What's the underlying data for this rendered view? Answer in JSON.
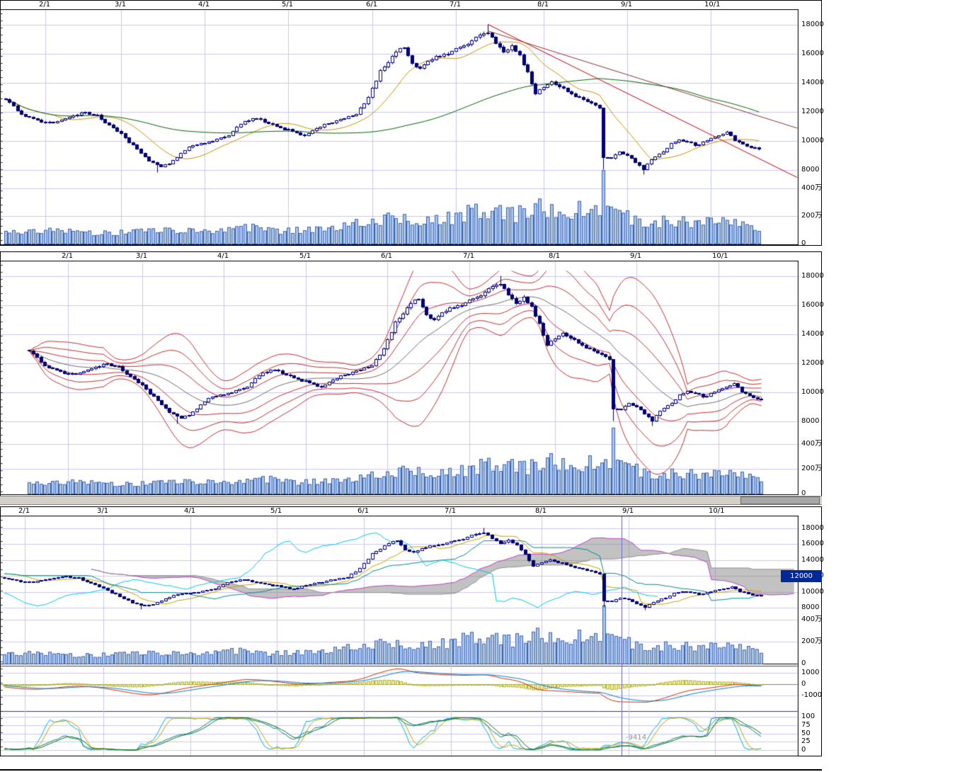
{
  "colors": {
    "background": "#ffffff",
    "grid": "#c8c8f0",
    "panel_border": "#000000",
    "candle_down": "#000080",
    "candle_up_fill": "#ffffff",
    "candle_outline": "#000066",
    "volume_fill": "#a8c8f0",
    "volume_outline": "#4060a8",
    "sma_short": "#d09000",
    "sma_long": "#006600",
    "trendline_1": "#c00000",
    "trendline_2": "#903030",
    "bollinger_band": "#c03030",
    "bollinger_center": "#707070",
    "ichimoku_tenkan": "#c8a000",
    "ichimoku_kijun": "#008b8b",
    "ichimoku_chikou": "#00c8e8",
    "ichimoku_span_a": "#c040c0",
    "ichimoku_span_b": "#909090",
    "ichimoku_cloud": "rgba(144,144,144,0.55)",
    "macd_line": "#d03000",
    "macd_signal": "#0080c8",
    "macd_hist_fill": "#f0f090",
    "macd_hist_outline": "#b0b040",
    "stoch_k": "#00b0d8",
    "stoch_d": "#c8a000",
    "stoch_slow": "#107010",
    "stoch_extra": "#008080",
    "cursor_line": "#7070c8",
    "price_marker_bg": "#002898",
    "price_marker_text": "#ffffff",
    "scrollbar_track": "#d4d0c8",
    "scrollbar_thumb": "#a8a8a8",
    "axis_text": "#000000",
    "cursor_value_text": "#909090"
  },
  "chart_data": {
    "type": "candlestick",
    "description_of_panels": [
      {
        "id": "daily-candles-moving-averages",
        "overlays": [
          "candlesticks",
          "volume bars",
          "short moving average (orange)",
          "long moving average (green)",
          "descending trendline (red)",
          "descending trendline (dark red)"
        ]
      },
      {
        "id": "bollinger-bands",
        "overlays": [
          "candlesticks",
          "volume bars",
          "center moving average (gray)",
          "bollinger bands ±1σ ±2σ ±3σ (red)"
        ]
      },
      {
        "id": "ichimoku-macd-stochastics",
        "overlays": [
          "candlesticks",
          "volume bars",
          "ichimoku cloud (gray fill, magenta span A, gray span B, gold tenkan, teal kijun, cyan chikou)",
          "MACD red line, blue signal, yellow histogram",
          "stochastics lines (cyan, gold, teal, green)"
        ]
      }
    ],
    "x_tick_labels": [
      "2/1",
      "3/1",
      "4/1",
      "5/1",
      "6/1",
      "7/1",
      "8/1",
      "9/1",
      "10/1"
    ],
    "month_day_index": {
      "2/1": 10,
      "3/1": 29,
      "4/1": 50,
      "5/1": 71,
      "6/1": 92,
      "7/1": 113,
      "8/1": 135,
      "9/1": 156,
      "10/1": 177
    },
    "price_axis_ticks": [
      18000,
      16000,
      14000,
      12000,
      10000,
      8000
    ],
    "volume_axis_ticks": [
      {
        "label": "400万",
        "value": 400
      },
      {
        "label": "200万",
        "value": 200
      },
      {
        "label": "0",
        "value": 0
      }
    ],
    "macd_axis_ticks": [
      {
        "label": "1000",
        "value": 1000
      },
      {
        "label": "0",
        "value": 0
      },
      {
        "label": "-1000",
        "value": -1000
      }
    ],
    "oscillator_axis_ticks": [
      {
        "label": "100",
        "value": 100
      },
      {
        "label": "75",
        "value": 75
      },
      {
        "label": "50",
        "value": 50
      },
      {
        "label": "25",
        "value": 25
      },
      {
        "label": "0",
        "value": 0
      }
    ],
    "series": {
      "days": 190,
      "feb1_day_index": 10,
      "close_anchors": [
        [
          0,
          12900
        ],
        [
          2,
          12400
        ],
        [
          4,
          11900
        ],
        [
          6,
          11600
        ],
        [
          9,
          11400
        ],
        [
          12,
          11300
        ],
        [
          16,
          11700
        ],
        [
          20,
          12000
        ],
        [
          23,
          11750
        ],
        [
          26,
          11100
        ],
        [
          29,
          10500
        ],
        [
          31,
          9900
        ],
        [
          33,
          9500
        ],
        [
          36,
          8700
        ],
        [
          39,
          8300
        ],
        [
          41,
          8500
        ],
        [
          43,
          8900
        ],
        [
          46,
          9600
        ],
        [
          50,
          9900
        ],
        [
          53,
          10100
        ],
        [
          56,
          10400
        ],
        [
          60,
          11400
        ],
        [
          63,
          11600
        ],
        [
          66,
          11200
        ],
        [
          69,
          10900
        ],
        [
          71,
          10800
        ],
        [
          75,
          10400
        ],
        [
          78,
          10900
        ],
        [
          81,
          11200
        ],
        [
          84,
          11500
        ],
        [
          88,
          11900
        ],
        [
          90,
          12600
        ],
        [
          92,
          13600
        ],
        [
          94,
          14800
        ],
        [
          96,
          15400
        ],
        [
          98,
          16200
        ],
        [
          100,
          16500
        ],
        [
          102,
          15300
        ],
        [
          104,
          15000
        ],
        [
          107,
          15700
        ],
        [
          110,
          16000
        ],
        [
          113,
          16300
        ],
        [
          115,
          16600
        ],
        [
          117,
          16900
        ],
        [
          119,
          17300
        ],
        [
          121,
          17500
        ],
        [
          123,
          16800
        ],
        [
          125,
          16200
        ],
        [
          127,
          16500
        ],
        [
          129,
          15900
        ],
        [
          131,
          14700
        ],
        [
          133,
          13300
        ],
        [
          135,
          13800
        ],
        [
          137,
          14100
        ],
        [
          140,
          13600
        ],
        [
          143,
          13100
        ],
        [
          146,
          12700
        ],
        [
          149,
          12300
        ],
        [
          150,
          8900
        ],
        [
          152,
          8800
        ],
        [
          154,
          9300
        ],
        [
          156,
          9000
        ],
        [
          158,
          8600
        ],
        [
          160,
          8100
        ],
        [
          162,
          8700
        ],
        [
          165,
          9300
        ],
        [
          167,
          9800
        ],
        [
          169,
          10100
        ],
        [
          171,
          10000
        ],
        [
          173,
          9700
        ],
        [
          175,
          9900
        ],
        [
          177,
          10200
        ],
        [
          179,
          10400
        ],
        [
          181,
          10600
        ],
        [
          183,
          10100
        ],
        [
          185,
          9800
        ],
        [
          187,
          9600
        ],
        [
          189,
          9414
        ]
      ],
      "volume_anchors_x10k": [
        [
          0,
          85
        ],
        [
          8,
          95
        ],
        [
          14,
          100
        ],
        [
          20,
          88
        ],
        [
          26,
          80
        ],
        [
          31,
          90
        ],
        [
          36,
          110
        ],
        [
          41,
          95
        ],
        [
          48,
          92
        ],
        [
          54,
          100
        ],
        [
          60,
          120
        ],
        [
          64,
          115
        ],
        [
          68,
          100
        ],
        [
          72,
          95
        ],
        [
          76,
          105
        ],
        [
          82,
          118
        ],
        [
          86,
          135
        ],
        [
          90,
          160
        ],
        [
          93,
          185
        ],
        [
          96,
          205
        ],
        [
          100,
          190
        ],
        [
          104,
          172
        ],
        [
          108,
          180
        ],
        [
          112,
          198
        ],
        [
          116,
          228
        ],
        [
          120,
          255
        ],
        [
          124,
          235
        ],
        [
          128,
          215
        ],
        [
          131,
          262
        ],
        [
          133,
          300
        ],
        [
          135,
          275
        ],
        [
          138,
          240
        ],
        [
          141,
          228
        ],
        [
          144,
          252
        ],
        [
          147,
          262
        ],
        [
          149,
          280
        ],
        [
          150,
          430
        ],
        [
          151,
          330
        ],
        [
          153,
          260
        ],
        [
          156,
          200
        ],
        [
          159,
          170
        ],
        [
          162,
          160
        ],
        [
          165,
          172
        ],
        [
          168,
          152
        ],
        [
          171,
          162
        ],
        [
          174,
          148
        ],
        [
          177,
          158
        ],
        [
          181,
          205
        ],
        [
          184,
          150
        ],
        [
          187,
          115
        ],
        [
          189,
          85
        ]
      ],
      "wick_overrides": [
        [
          121,
          "h",
          18050
        ],
        [
          150,
          "l",
          8050
        ],
        [
          160,
          "l",
          7720
        ],
        [
          38,
          "l",
          7840
        ]
      ]
    },
    "price_axis_range": [
      7400,
      19000
    ],
    "annotations": {
      "cursor_value": "-9414",
      "highlighted_price_label": "12000",
      "cursor_x": 878
    }
  }
}
